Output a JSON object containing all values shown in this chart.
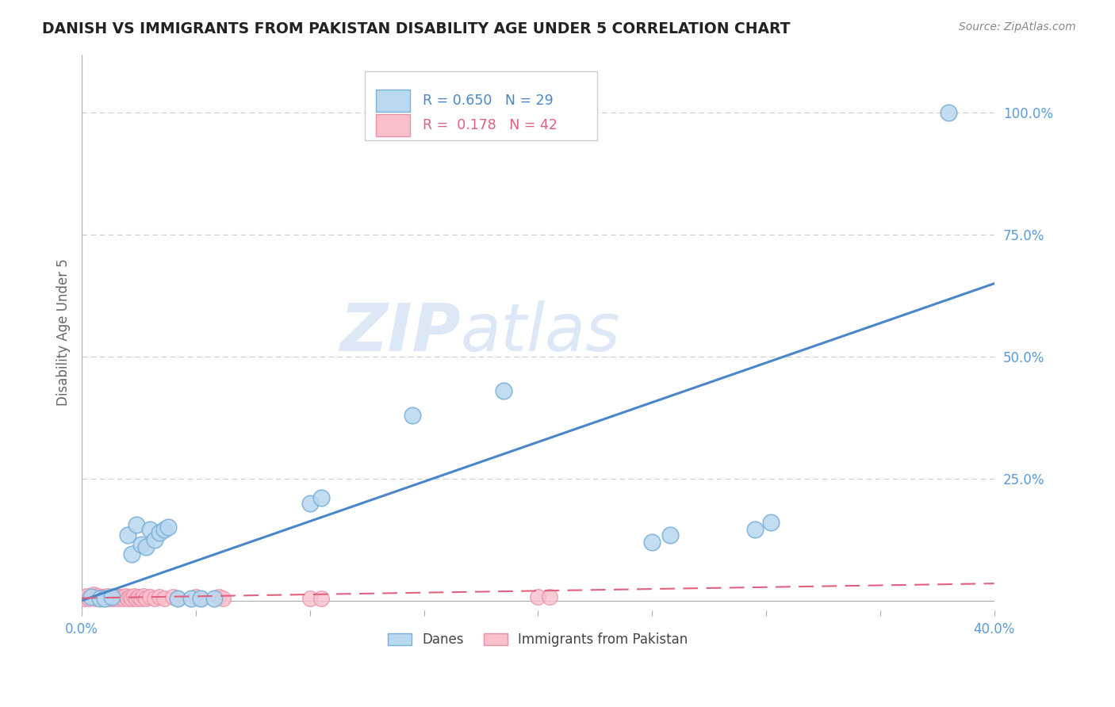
{
  "title": "DANISH VS IMMIGRANTS FROM PAKISTAN DISABILITY AGE UNDER 5 CORRELATION CHART",
  "source": "Source: ZipAtlas.com",
  "ylabel": "Disability Age Under 5",
  "xlim": [
    0.0,
    0.4
  ],
  "ylim": [
    -0.02,
    1.12
  ],
  "xticks": [
    0.0,
    0.05,
    0.1,
    0.15,
    0.2,
    0.25,
    0.3,
    0.35,
    0.4
  ],
  "yticks_right": [
    0.0,
    0.25,
    0.5,
    0.75,
    1.0
  ],
  "yticklabels_right": [
    "",
    "25.0%",
    "50.0%",
    "75.0%",
    "100.0%"
  ],
  "danes_scatter_x": [
    0.004,
    0.008,
    0.01,
    0.013,
    0.02,
    0.022,
    0.024,
    0.026,
    0.028,
    0.03,
    0.032,
    0.034,
    0.036,
    0.038,
    0.042,
    0.048,
    0.052,
    0.058,
    0.1,
    0.105,
    0.145,
    0.185,
    0.25,
    0.258,
    0.295,
    0.302,
    0.38
  ],
  "danes_scatter_y": [
    0.008,
    0.005,
    0.005,
    0.008,
    0.135,
    0.095,
    0.155,
    0.115,
    0.11,
    0.145,
    0.125,
    0.14,
    0.145,
    0.15,
    0.005,
    0.005,
    0.005,
    0.005,
    0.2,
    0.21,
    0.38,
    0.43,
    0.12,
    0.135,
    0.145,
    0.16,
    1.0
  ],
  "pakistan_scatter_x": [
    0.001,
    0.002,
    0.003,
    0.004,
    0.005,
    0.006,
    0.007,
    0.008,
    0.009,
    0.01,
    0.011,
    0.012,
    0.013,
    0.014,
    0.015,
    0.016,
    0.017,
    0.018,
    0.019,
    0.02,
    0.021,
    0.022,
    0.023,
    0.024,
    0.025,
    0.026,
    0.027,
    0.028,
    0.03,
    0.032,
    0.034,
    0.036,
    0.04,
    0.042,
    0.05,
    0.052,
    0.06,
    0.062,
    0.1,
    0.105,
    0.2,
    0.205
  ],
  "pakistan_scatter_y": [
    0.005,
    0.01,
    0.005,
    0.008,
    0.012,
    0.005,
    0.01,
    0.005,
    0.008,
    0.005,
    0.01,
    0.005,
    0.008,
    0.005,
    0.01,
    0.005,
    0.008,
    0.005,
    0.01,
    0.005,
    0.008,
    0.005,
    0.01,
    0.005,
    0.008,
    0.005,
    0.01,
    0.005,
    0.008,
    0.005,
    0.008,
    0.005,
    0.008,
    0.005,
    0.008,
    0.005,
    0.008,
    0.005,
    0.005,
    0.005,
    0.008,
    0.008
  ],
  "danes_line_x": [
    0.0,
    0.4
  ],
  "danes_line_y": [
    0.0,
    0.65
  ],
  "pakistan_line_x": [
    0.0,
    0.4
  ],
  "pakistan_line_y": [
    0.005,
    0.035
  ],
  "background_color": "#ffffff",
  "grid_color": "#cccccc",
  "title_color": "#222222",
  "axis_label_color": "#666666",
  "right_tick_color": "#5b9bd5",
  "danes_face": "#b8d8f0",
  "danes_edge": "#7ab0d8",
  "pakistan_face": "#f9c0cc",
  "pakistan_edge": "#e890a8",
  "danes_line_color": "#4a86c8",
  "pakistan_line_color": "#e06080",
  "watermark_zip": "ZIP",
  "watermark_atlas": "atlas",
  "watermark_color": "#dce8f5",
  "watermark_fontsize": 60
}
